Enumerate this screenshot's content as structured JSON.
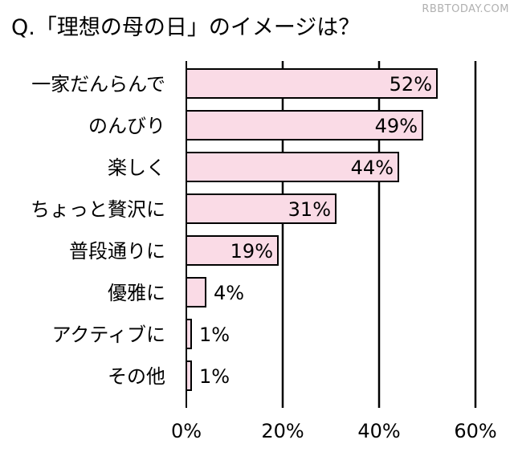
{
  "title": "Q.「理想の母の日」のイメージは？",
  "watermark": "RBBTODAY.COM",
  "colors": {
    "bar_fill": "#fadbe6",
    "bar_stroke": "#000000",
    "grid": "#000000"
  },
  "chart_data": {
    "type": "bar",
    "orientation": "horizontal",
    "title": "Q.「理想の母の日」のイメージは？",
    "categories": [
      "一家だんらんで",
      "のんびり",
      "楽しく",
      "ちょっと贅沢に",
      "普段通りに",
      "優雅に",
      "アクティブに",
      "その他"
    ],
    "values": [
      52,
      49,
      44,
      31,
      19,
      4,
      1,
      1
    ],
    "value_labels": [
      "52%",
      "49%",
      "44%",
      "31%",
      "19%",
      "4%",
      "1%",
      "1%"
    ],
    "xlim": [
      0,
      60
    ],
    "xticks": [
      0,
      20,
      40,
      60
    ],
    "xtick_labels": [
      "0%",
      "20%",
      "40%",
      "60%"
    ],
    "grid": true,
    "legend": "none"
  }
}
